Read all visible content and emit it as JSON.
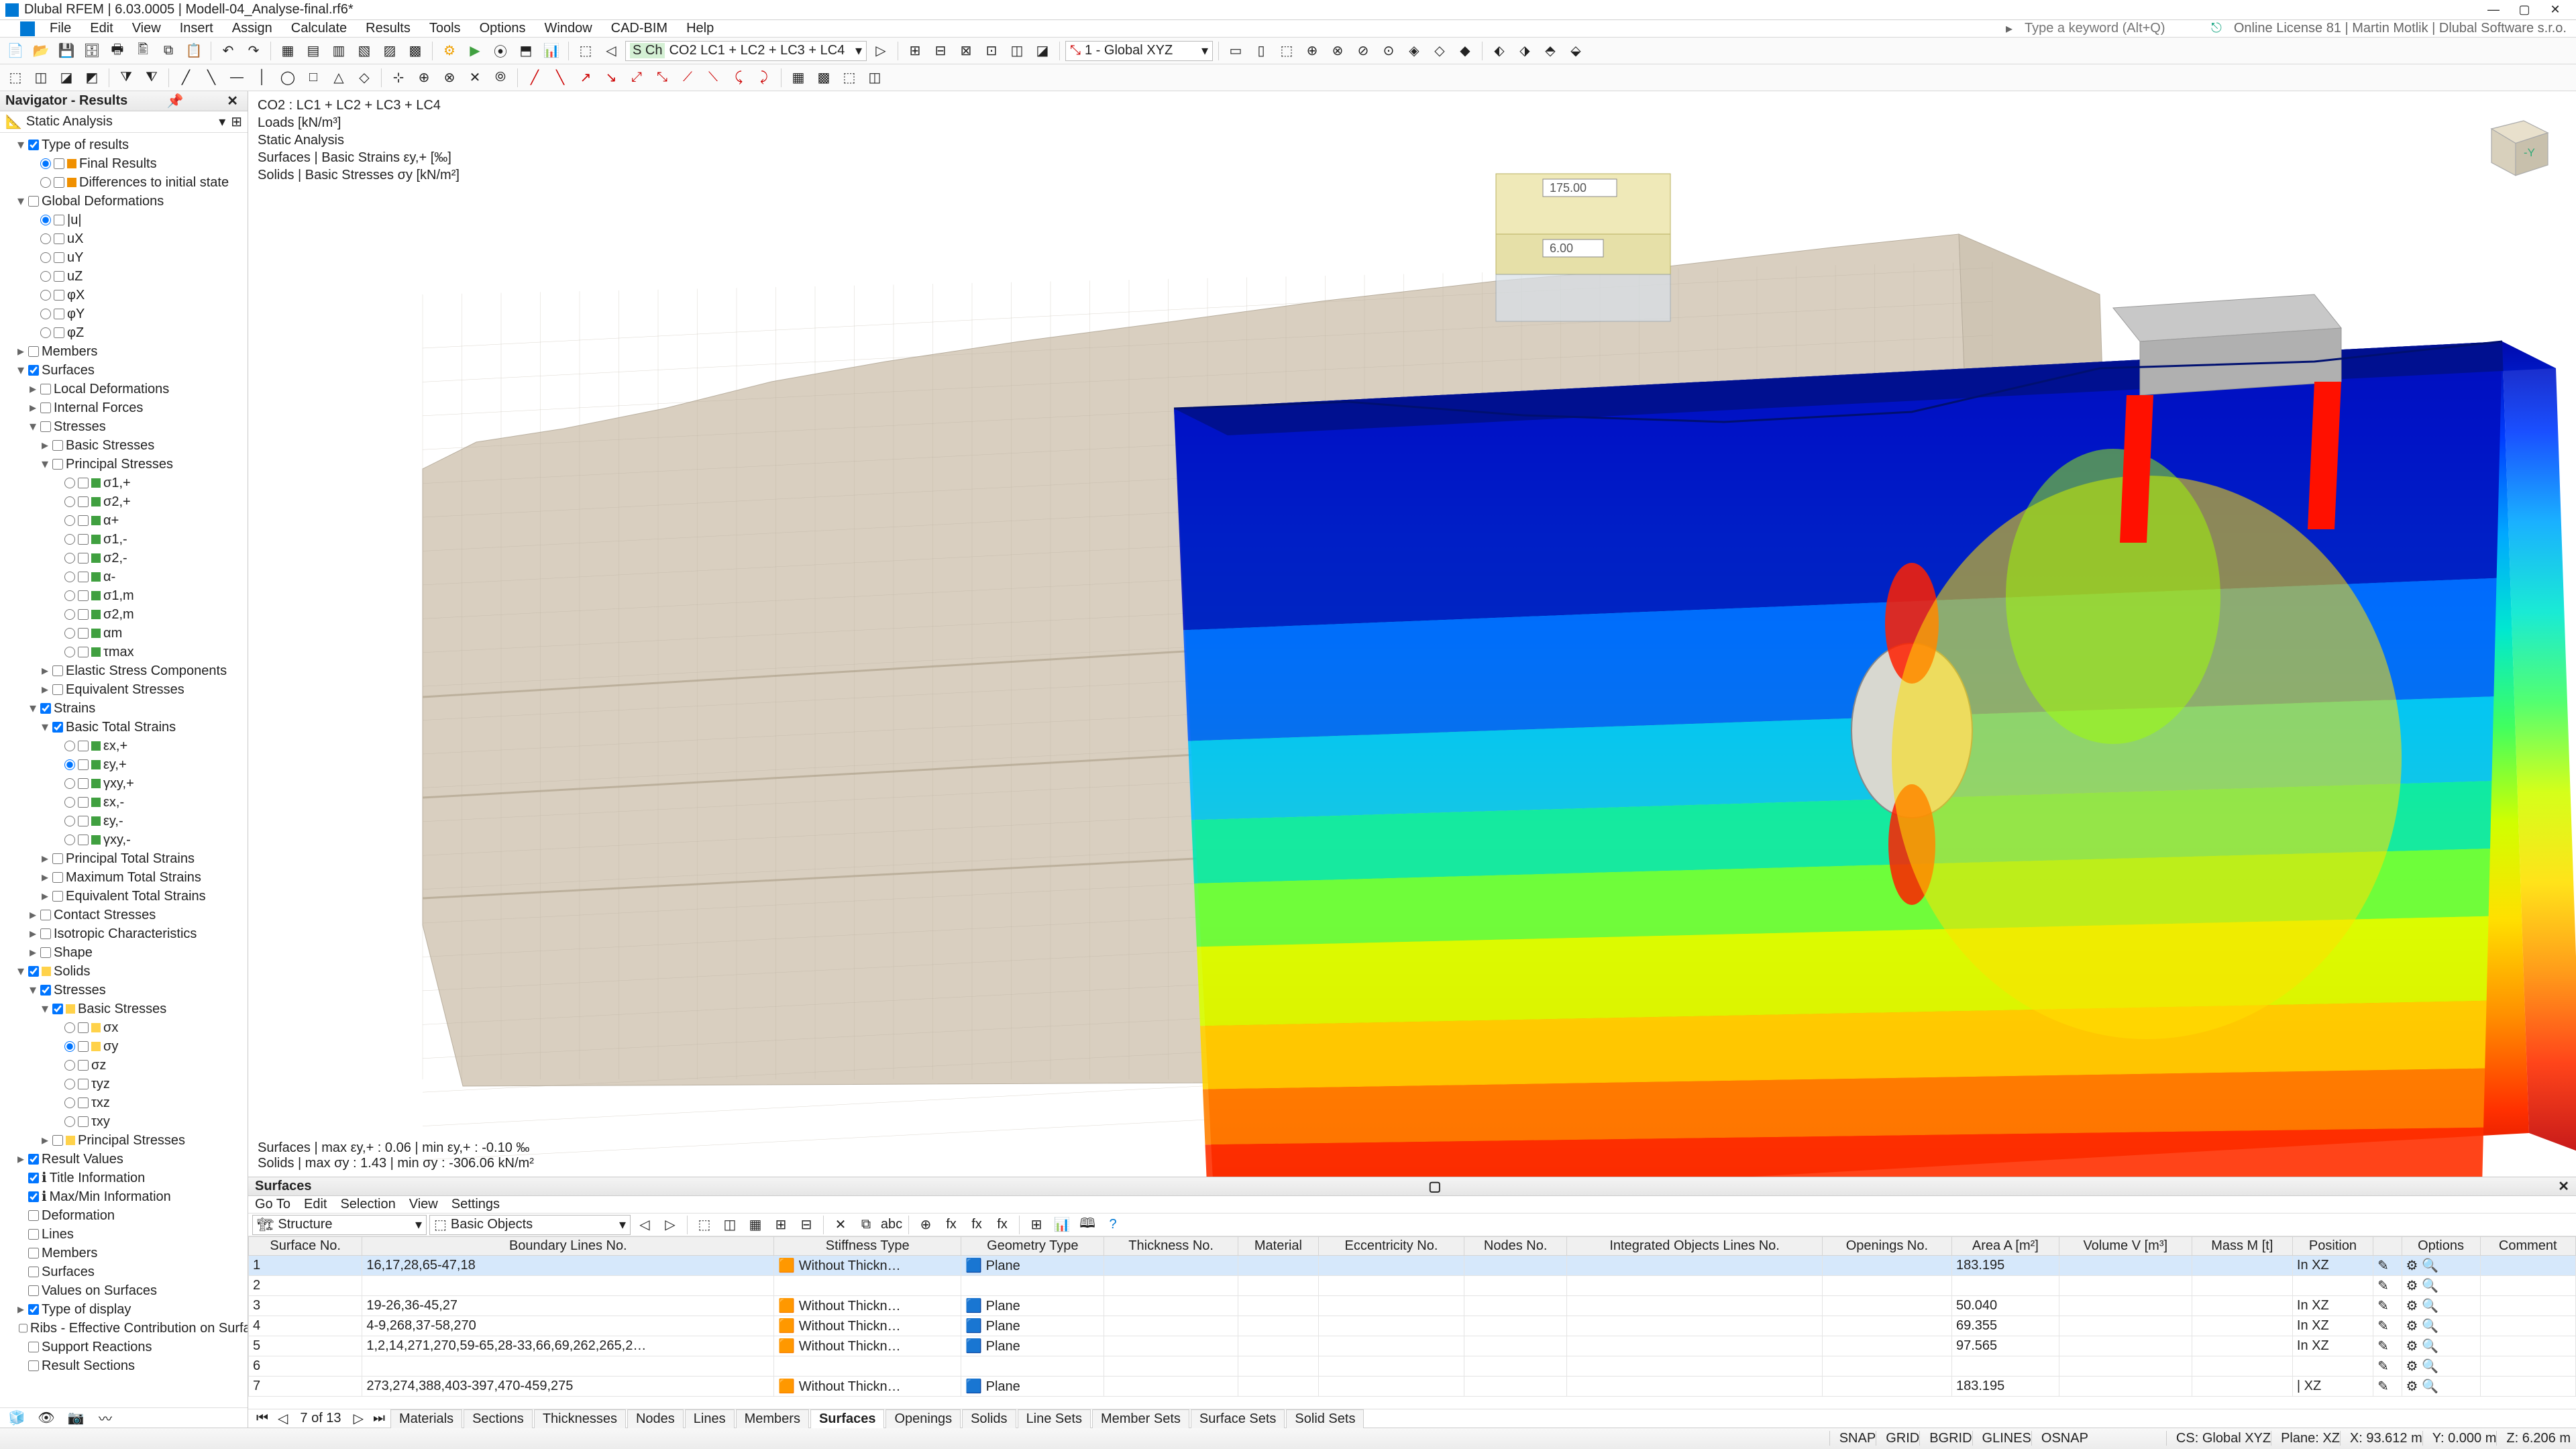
{
  "app": {
    "title": "Dlubal RFEM | 6.03.0005 | Modell-04_Analyse-final.rf6*",
    "search_placeholder": "Type a keyword (Alt+Q)",
    "license": "Online License 81 | Martin Motlik | Dlubal Software s.r.o."
  },
  "menu": [
    "File",
    "Edit",
    "View",
    "Insert",
    "Assign",
    "Calculate",
    "Results",
    "Tools",
    "Options",
    "Window",
    "CAD-BIM",
    "Help"
  ],
  "combo_case": "CO2   LC1 + LC2 + LC3 + LC4",
  "combo_case_tag": "S Ch",
  "combo_cs": "1 - Global XYZ",
  "navigator": {
    "title": "Navigator - Results",
    "mode": "Static Analysis",
    "tree": [
      {
        "lvl": 1,
        "exp": "-",
        "chk": true,
        "label": "Type of results"
      },
      {
        "lvl": 2,
        "radio": true,
        "checked": true,
        "color": "#f09000",
        "label": "Final Results"
      },
      {
        "lvl": 2,
        "radio": true,
        "color": "#f09000",
        "label": "Differences to initial state"
      },
      {
        "lvl": 1,
        "exp": "-",
        "chk": false,
        "label": "Global Deformations"
      },
      {
        "lvl": 2,
        "radio": true,
        "checked": true,
        "label": "|u|"
      },
      {
        "lvl": 2,
        "radio": true,
        "label": "uX"
      },
      {
        "lvl": 2,
        "radio": true,
        "label": "uY"
      },
      {
        "lvl": 2,
        "radio": true,
        "label": "uZ"
      },
      {
        "lvl": 2,
        "radio": true,
        "label": "φX"
      },
      {
        "lvl": 2,
        "radio": true,
        "label": "φY"
      },
      {
        "lvl": 2,
        "radio": true,
        "label": "φZ"
      },
      {
        "lvl": 1,
        "exp": "+",
        "chk": false,
        "label": "Members"
      },
      {
        "lvl": 1,
        "exp": "-",
        "chk": true,
        "label": "Surfaces"
      },
      {
        "lvl": 2,
        "exp": "+",
        "chk": false,
        "label": "Local Deformations"
      },
      {
        "lvl": 2,
        "exp": "+",
        "chk": false,
        "label": "Internal Forces"
      },
      {
        "lvl": 2,
        "exp": "-",
        "chk": false,
        "label": "Stresses"
      },
      {
        "lvl": 3,
        "exp": "+",
        "chk": false,
        "label": "Basic Stresses"
      },
      {
        "lvl": 3,
        "exp": "-",
        "chk": false,
        "label": "Principal Stresses"
      },
      {
        "lvl": 4,
        "radio": true,
        "color": "#40a040",
        "label": "σ1,+"
      },
      {
        "lvl": 4,
        "radio": true,
        "color": "#40a040",
        "label": "σ2,+"
      },
      {
        "lvl": 4,
        "radio": true,
        "color": "#40a040",
        "label": "α+"
      },
      {
        "lvl": 4,
        "radio": true,
        "color": "#40a040",
        "label": "σ1,-"
      },
      {
        "lvl": 4,
        "radio": true,
        "color": "#40a040",
        "label": "σ2,-"
      },
      {
        "lvl": 4,
        "radio": true,
        "color": "#40a040",
        "label": "α-"
      },
      {
        "lvl": 4,
        "radio": true,
        "color": "#40a040",
        "label": "σ1,m"
      },
      {
        "lvl": 4,
        "radio": true,
        "color": "#40a040",
        "label": "σ2,m"
      },
      {
        "lvl": 4,
        "radio": true,
        "color": "#40a040",
        "label": "αm"
      },
      {
        "lvl": 4,
        "radio": true,
        "color": "#40a040",
        "label": "τmax"
      },
      {
        "lvl": 3,
        "exp": "+",
        "chk": false,
        "label": "Elastic Stress Components"
      },
      {
        "lvl": 3,
        "exp": "+",
        "chk": false,
        "label": "Equivalent Stresses"
      },
      {
        "lvl": 2,
        "exp": "-",
        "chk": true,
        "label": "Strains"
      },
      {
        "lvl": 3,
        "exp": "-",
        "chk": true,
        "label": "Basic Total Strains"
      },
      {
        "lvl": 4,
        "radio": true,
        "color": "#40a040",
        "label": "εx,+"
      },
      {
        "lvl": 4,
        "radio": true,
        "checked": true,
        "color": "#40a040",
        "label": "εy,+"
      },
      {
        "lvl": 4,
        "radio": true,
        "color": "#40a040",
        "label": "γxy,+"
      },
      {
        "lvl": 4,
        "radio": true,
        "color": "#40a040",
        "label": "εx,-"
      },
      {
        "lvl": 4,
        "radio": true,
        "color": "#40a040",
        "label": "εy,-"
      },
      {
        "lvl": 4,
        "radio": true,
        "color": "#40a040",
        "label": "γxy,-"
      },
      {
        "lvl": 3,
        "exp": "+",
        "chk": false,
        "label": "Principal Total Strains"
      },
      {
        "lvl": 3,
        "exp": "+",
        "chk": false,
        "label": "Maximum Total Strains"
      },
      {
        "lvl": 3,
        "exp": "+",
        "chk": false,
        "label": "Equivalent Total Strains"
      },
      {
        "lvl": 2,
        "exp": "+",
        "chk": false,
        "label": "Contact Stresses"
      },
      {
        "lvl": 2,
        "exp": "+",
        "chk": false,
        "label": "Isotropic Characteristics"
      },
      {
        "lvl": 2,
        "exp": "+",
        "chk": false,
        "label": "Shape"
      },
      {
        "lvl": 1,
        "exp": "-",
        "chk": true,
        "hl": true,
        "label": "Solids"
      },
      {
        "lvl": 2,
        "exp": "-",
        "chk": true,
        "label": "Stresses"
      },
      {
        "lvl": 3,
        "exp": "-",
        "chk": true,
        "hl": true,
        "label": "Basic Stresses"
      },
      {
        "lvl": 4,
        "radio": true,
        "hl": true,
        "label": "σx"
      },
      {
        "lvl": 4,
        "radio": true,
        "checked": true,
        "hl": true,
        "label": "σy"
      },
      {
        "lvl": 4,
        "radio": true,
        "label": "σz"
      },
      {
        "lvl": 4,
        "radio": true,
        "label": "τyz"
      },
      {
        "lvl": 4,
        "radio": true,
        "label": "τxz"
      },
      {
        "lvl": 4,
        "radio": true,
        "label": "τxy"
      },
      {
        "lvl": 3,
        "exp": "+",
        "chk": false,
        "hl": true,
        "label": "Principal Stresses"
      },
      {
        "lvl": 1,
        "chk": true,
        "exp": "+",
        "label": "Result Values"
      },
      {
        "lvl": 1,
        "chk": true,
        "icon": "ℹ",
        "label": "Title Information"
      },
      {
        "lvl": 1,
        "chk": true,
        "icon": "ℹ",
        "label": "Max/Min Information"
      },
      {
        "lvl": 1,
        "chk": false,
        "label": "Deformation"
      },
      {
        "lvl": 1,
        "chk": false,
        "label": "Lines"
      },
      {
        "lvl": 1,
        "chk": false,
        "label": "Members"
      },
      {
        "lvl": 1,
        "chk": false,
        "label": "Surfaces"
      },
      {
        "lvl": 1,
        "chk": false,
        "label": "Values on Surfaces"
      },
      {
        "lvl": 1,
        "exp": "+",
        "chk": true,
        "label": "Type of display"
      },
      {
        "lvl": 1,
        "chk": false,
        "label": "Ribs - Effective Contribution on Surface…"
      },
      {
        "lvl": 1,
        "chk": false,
        "label": "Support Reactions"
      },
      {
        "lvl": 1,
        "chk": false,
        "label": "Result Sections"
      }
    ]
  },
  "viewport": {
    "lines": [
      "CO2 : LC1 + LC2 + LC3 + LC4",
      "Loads [kN/m³]",
      "Static Analysis",
      "Surfaces | Basic Strains εy,+ [‰]",
      "Solids | Basic Stresses σy [kN/m²]"
    ],
    "footer": [
      "Surfaces | max εy,+ : 0.06 | min εy,+ : -0.10 ‰",
      "Solids | max σy : 1.43 | min σy : -306.06 kN/m²"
    ],
    "load_labels": [
      "175.00",
      "6.00"
    ],
    "mesh_color": "#d9cfc0",
    "mesh_line": "#b8ae9e",
    "colormap": [
      "#0008b0",
      "#003cff",
      "#00a8ff",
      "#00e8d0",
      "#40ff60",
      "#d0ff00",
      "#ffe000",
      "#ff9000",
      "#ff3000",
      "#c00000"
    ]
  },
  "panel": {
    "title": "Surfaces",
    "menus": [
      "Go To",
      "Edit",
      "Selection",
      "View",
      "Settings"
    ],
    "combo1": "Structure",
    "combo2": "Basic Objects",
    "page": "7 of 13",
    "columns": [
      "Surface No.",
      "Boundary Lines No.",
      "Stiffness Type",
      "Geometry Type",
      "Thickness No.",
      "Material",
      "Eccentricity No.",
      "Nodes No.",
      "Integrated Objects Lines No.",
      "Openings No.",
      "Area A [m²]",
      "Volume V [m³]",
      "Mass M [t]",
      "Position",
      "",
      "Options",
      "Comment"
    ],
    "rows": [
      {
        "no": "1",
        "bl": "16,17,28,65-47,18",
        "st": "Without Thickn…",
        "gt": "Plane",
        "area": "183.195",
        "pos": "In XZ"
      },
      {
        "no": "2"
      },
      {
        "no": "3",
        "bl": "19-26,36-45,27",
        "st": "Without Thickn…",
        "gt": "Plane",
        "area": "50.040",
        "pos": "In XZ"
      },
      {
        "no": "4",
        "bl": "4-9,268,37-58,270",
        "st": "Without Thickn…",
        "gt": "Plane",
        "area": "69.355",
        "pos": "In XZ"
      },
      {
        "no": "5",
        "bl": "1,2,14,271,270,59-65,28-33,66,69,262,265,2…",
        "st": "Without Thickn…",
        "gt": "Plane",
        "area": "97.565",
        "pos": "In XZ"
      },
      {
        "no": "6"
      },
      {
        "no": "7",
        "bl": "273,274,388,403-397,470-459,275",
        "st": "Without Thickn…",
        "gt": "Plane",
        "area": "183.195",
        "pos": "| XZ"
      }
    ],
    "tabs": [
      "Materials",
      "Sections",
      "Thicknesses",
      "Nodes",
      "Lines",
      "Members",
      "Surfaces",
      "Openings",
      "Solids",
      "Line Sets",
      "Member Sets",
      "Surface Sets",
      "Solid Sets"
    ],
    "active_tab": 6
  },
  "status": {
    "left": [
      "SNAP",
      "GRID",
      "BGRID",
      "GLINES",
      "OSNAP"
    ],
    "right": [
      "CS: Global XYZ",
      "Plane: XZ",
      "X: 93.612 m",
      "Y: 0.000 m",
      "Z: 6.206 m"
    ]
  }
}
